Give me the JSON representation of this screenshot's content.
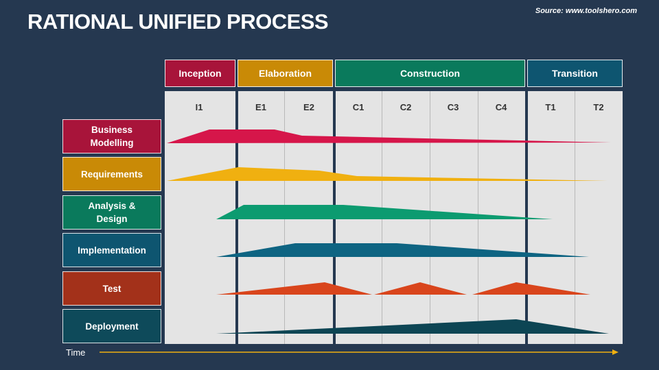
{
  "title": "RATIONAL UNIFIED PROCESS",
  "source": "Source: www.toolshero.com",
  "phases": [
    {
      "label": "Inception",
      "color": "#a8143a"
    },
    {
      "label": "Elaboration",
      "color": "#c98a06"
    },
    {
      "label": "Construction",
      "color": "#0a7a5c"
    },
    {
      "label": "Transition",
      "color": "#0e5570"
    }
  ],
  "iterations": [
    "I1",
    "E1",
    "E2",
    "C1",
    "C2",
    "C3",
    "C4",
    "T1",
    "T2"
  ],
  "disciplines": [
    {
      "label": "Business\nModelling",
      "color": "#a8143a",
      "hump_color": "#d6164a"
    },
    {
      "label": "Requirements",
      "color": "#c98a06",
      "hump_color": "#f0b010"
    },
    {
      "label": "Analysis &\nDesign",
      "color": "#0a7a5c",
      "hump_color": "#0c9b70"
    },
    {
      "label": "Implementation",
      "color": "#0e5570",
      "hump_color": "#0e6482"
    },
    {
      "label": "Test",
      "color": "#a3311a",
      "hump_color": "#d9451c"
    },
    {
      "label": "Deployment",
      "color": "#0e4a5a",
      "hump_color": "#0d4554"
    }
  ],
  "time_label": "Time",
  "time_arrow_color": "#f0b010"
}
